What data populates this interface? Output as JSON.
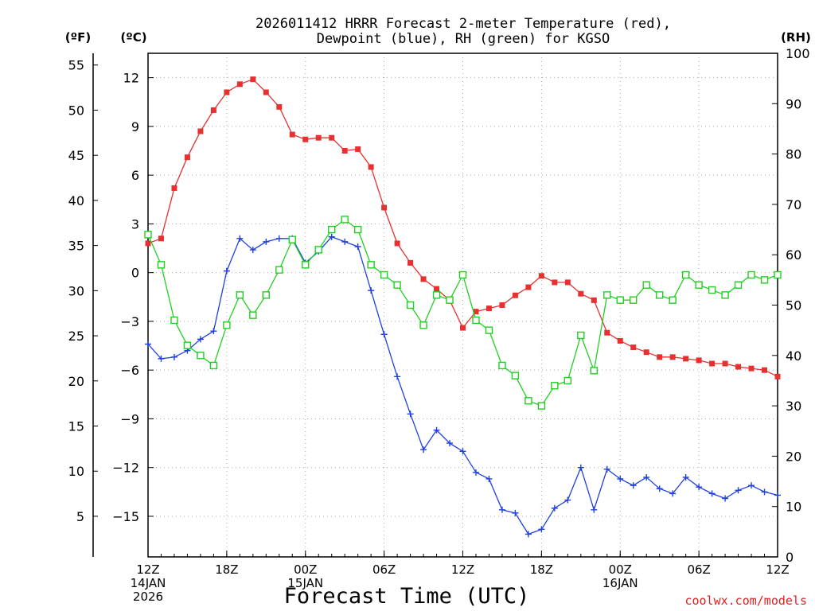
{
  "chart_data": {
    "type": "line",
    "title_line1": "2026011412 HRRR Forecast 2-meter Temperature (red),",
    "title_line2": "Dewpoint (blue), RH (green) for KGSO",
    "xlabel": "Forecast Time (UTC)",
    "credit": "coolwx.com/models",
    "units": {
      "fahrenheit": "(ºF)",
      "celsius": "(ºC)",
      "rh": "(RH)"
    },
    "x_range_hours": [
      0,
      48
    ],
    "y_celsius_range": [
      -17.5,
      13.5
    ],
    "y_rh_range": [
      0,
      100
    ],
    "grid": true,
    "y_celsius_ticks": [
      {
        "v": 12,
        "label": "12"
      },
      {
        "v": 9,
        "label": "9"
      },
      {
        "v": 6,
        "label": "6"
      },
      {
        "v": 3,
        "label": "3"
      },
      {
        "v": 0,
        "label": "0"
      },
      {
        "v": -3,
        "label": "−3"
      },
      {
        "v": -6,
        "label": "−6"
      },
      {
        "v": -9,
        "label": "−9"
      },
      {
        "v": -12,
        "label": "−12"
      },
      {
        "v": -15,
        "label": "−15"
      }
    ],
    "y_fahrenheit_ticks": [
      {
        "v": 55,
        "label": "55"
      },
      {
        "v": 50,
        "label": "50"
      },
      {
        "v": 45,
        "label": "45"
      },
      {
        "v": 40,
        "label": "40"
      },
      {
        "v": 35,
        "label": "35"
      },
      {
        "v": 30,
        "label": "30"
      },
      {
        "v": 25,
        "label": "25"
      },
      {
        "v": 20,
        "label": "20"
      },
      {
        "v": 15,
        "label": "15"
      },
      {
        "v": 10,
        "label": "10"
      },
      {
        "v": 5,
        "label": "5"
      }
    ],
    "y_rh_ticks": [
      {
        "v": 100,
        "label": "100"
      },
      {
        "v": 90,
        "label": "90"
      },
      {
        "v": 80,
        "label": "80"
      },
      {
        "v": 70,
        "label": "70"
      },
      {
        "v": 60,
        "label": "60"
      },
      {
        "v": 50,
        "label": "50"
      },
      {
        "v": 40,
        "label": "40"
      },
      {
        "v": 30,
        "label": "30"
      },
      {
        "v": 20,
        "label": "20"
      },
      {
        "v": 10,
        "label": "10"
      },
      {
        "v": 0,
        "label": "0"
      }
    ],
    "x_ticks": [
      {
        "h": 0,
        "lines": [
          "12Z",
          "14JAN",
          "2026"
        ]
      },
      {
        "h": 6,
        "lines": [
          "18Z"
        ]
      },
      {
        "h": 12,
        "lines": [
          "00Z",
          "15JAN"
        ]
      },
      {
        "h": 18,
        "lines": [
          "06Z"
        ]
      },
      {
        "h": 24,
        "lines": [
          "12Z"
        ]
      },
      {
        "h": 30,
        "lines": [
          "18Z"
        ]
      },
      {
        "h": 36,
        "lines": [
          "00Z",
          "16JAN"
        ]
      },
      {
        "h": 42,
        "lines": [
          "06Z"
        ]
      },
      {
        "h": 48,
        "lines": [
          "12Z"
        ]
      }
    ],
    "x_hours": [
      0,
      1,
      2,
      3,
      4,
      5,
      6,
      7,
      8,
      9,
      10,
      11,
      12,
      13,
      14,
      15,
      16,
      17,
      18,
      19,
      20,
      21,
      22,
      23,
      24,
      25,
      26,
      27,
      28,
      29,
      30,
      31,
      32,
      33,
      34,
      35,
      36,
      37,
      38,
      39,
      40,
      41,
      42,
      43,
      44,
      45,
      46,
      47,
      48
    ],
    "series": [
      {
        "name": "Temperature",
        "color": "#e83030",
        "marker": "filled-square",
        "axis": "celsius",
        "values": [
          1.8,
          2.1,
          5.2,
          7.1,
          8.7,
          10.0,
          11.1,
          11.6,
          11.9,
          11.1,
          10.2,
          8.5,
          8.2,
          8.3,
          8.3,
          7.5,
          7.6,
          6.5,
          4.0,
          1.8,
          0.6,
          -0.4,
          -1.0,
          -1.7,
          -3.4,
          -2.4,
          -2.2,
          -2.0,
          -1.4,
          -0.9,
          -0.2,
          -0.6,
          -0.6,
          -1.3,
          -1.7,
          -3.7,
          -4.2,
          -4.6,
          -4.9,
          -5.2,
          -5.2,
          -5.3,
          -5.4,
          -5.6,
          -5.6,
          -5.8,
          -5.9,
          -6.0,
          -6.4
        ]
      },
      {
        "name": "Dewpoint",
        "color": "#2040e0",
        "marker": "plus",
        "axis": "celsius",
        "values": [
          -4.4,
          -5.3,
          -5.2,
          -4.8,
          -4.1,
          -3.6,
          0.1,
          2.1,
          1.4,
          1.9,
          2.1,
          2.1,
          0.6,
          1.3,
          2.2,
          1.9,
          1.6,
          -1.1,
          -3.8,
          -6.4,
          -8.7,
          -10.9,
          -9.7,
          -10.5,
          -11.0,
          -12.3,
          -12.7,
          -14.6,
          -14.8,
          -16.1,
          -15.8,
          -14.5,
          -14.0,
          -12.0,
          -14.6,
          -12.1,
          -12.7,
          -13.1,
          -12.6,
          -13.3,
          -13.6,
          -12.6,
          -13.2,
          -13.6,
          -13.9,
          -13.4,
          -13.1,
          -13.5,
          -13.7
        ]
      },
      {
        "name": "RH",
        "color": "#20d020",
        "marker": "open-square",
        "axis": "rh",
        "values": [
          64,
          58,
          47,
          42,
          40,
          38,
          46,
          52,
          48,
          52,
          57,
          63,
          58,
          61,
          65,
          67,
          65,
          58,
          56,
          54,
          50,
          46,
          52,
          51,
          56,
          47,
          45,
          38,
          36,
          31,
          30,
          34,
          35,
          44,
          37,
          52,
          51,
          51,
          54,
          52,
          51,
          56,
          54,
          53,
          52,
          54,
          56,
          55,
          56
        ]
      }
    ]
  }
}
